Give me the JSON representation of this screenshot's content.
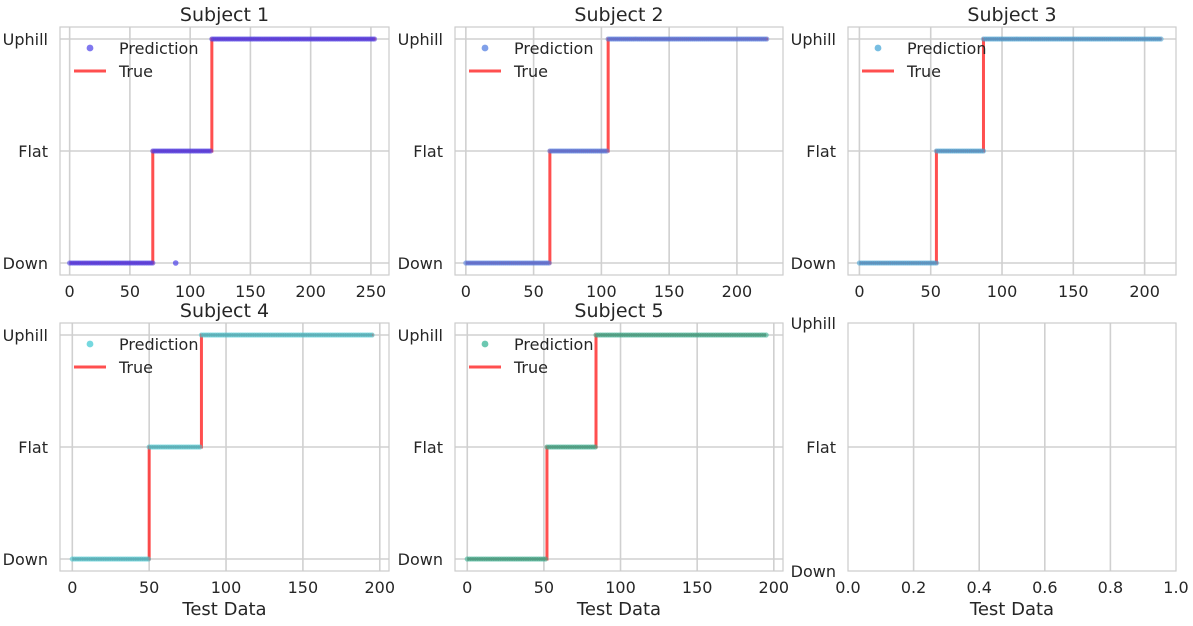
{
  "chart_data": [
    {
      "type": "line",
      "title": "Subject 1",
      "xlabel": "",
      "xlim": [
        -8,
        265
      ],
      "xticks": [
        0,
        50,
        100,
        150,
        200,
        250
      ],
      "categories": [
        "Down",
        "Flat",
        "Uphill"
      ],
      "pred_color": "#4a3fe8",
      "series": [
        {
          "name": "Prediction",
          "kind": "scatter",
          "segments": [
            [
              0,
              69,
              0
            ],
            [
              69,
              118,
              1
            ],
            [
              118,
              254,
              2
            ]
          ],
          "outliers": [
            [
              88,
              0
            ]
          ]
        },
        {
          "name": "True",
          "kind": "step",
          "points": [
            [
              0,
              0
            ],
            [
              69,
              0
            ],
            [
              69,
              1
            ],
            [
              118,
              1
            ],
            [
              118,
              2
            ],
            [
              254,
              2
            ]
          ]
        }
      ],
      "legend": [
        "Prediction",
        "True"
      ],
      "legend_position": "upper left"
    },
    {
      "type": "line",
      "title": "Subject 2",
      "xlabel": "",
      "xlim": [
        -8,
        234
      ],
      "xticks": [
        0,
        50,
        100,
        150,
        200
      ],
      "categories": [
        "Down",
        "Flat",
        "Uphill"
      ],
      "pred_color": "#4a78e0",
      "series": [
        {
          "name": "Prediction",
          "kind": "scatter",
          "segments": [
            [
              0,
              62,
              0
            ],
            [
              62,
              105,
              1
            ],
            [
              105,
              223,
              2
            ]
          ],
          "outliers": []
        },
        {
          "name": "True",
          "kind": "step",
          "points": [
            [
              0,
              0
            ],
            [
              62,
              0
            ],
            [
              62,
              1
            ],
            [
              105,
              1
            ],
            [
              105,
              2
            ],
            [
              223,
              2
            ]
          ]
        }
      ],
      "legend": [
        "Prediction",
        "True"
      ],
      "legend_position": "upper left"
    },
    {
      "type": "line",
      "title": "Subject 3",
      "xlabel": "",
      "xlim": [
        -8,
        222
      ],
      "xticks": [
        0,
        50,
        100,
        150,
        200
      ],
      "categories": [
        "Down",
        "Flat",
        "Uphill"
      ],
      "pred_color": "#3fa2d6",
      "series": [
        {
          "name": "Prediction",
          "kind": "scatter",
          "segments": [
            [
              0,
              54,
              0
            ],
            [
              54,
              87,
              1
            ],
            [
              87,
              212,
              2
            ]
          ],
          "outliers": []
        },
        {
          "name": "True",
          "kind": "step",
          "points": [
            [
              0,
              0
            ],
            [
              54,
              0
            ],
            [
              54,
              1
            ],
            [
              87,
              1
            ],
            [
              87,
              2
            ],
            [
              212,
              2
            ]
          ]
        }
      ],
      "legend": [
        "Prediction",
        "True"
      ],
      "legend_position": "upper left"
    },
    {
      "type": "line",
      "title": "Subject 4",
      "xlabel": "Test Data",
      "xlim": [
        -8,
        206
      ],
      "xticks": [
        0,
        50,
        100,
        150,
        200
      ],
      "categories": [
        "Down",
        "Flat",
        "Uphill"
      ],
      "pred_color": "#3cc8d2",
      "series": [
        {
          "name": "Prediction",
          "kind": "scatter",
          "segments": [
            [
              0,
              50,
              0
            ],
            [
              50,
              84,
              1
            ],
            [
              84,
              196,
              2
            ]
          ],
          "outliers": []
        },
        {
          "name": "True",
          "kind": "step",
          "points": [
            [
              0,
              0
            ],
            [
              50,
              0
            ],
            [
              50,
              1
            ],
            [
              84,
              1
            ],
            [
              84,
              2
            ],
            [
              196,
              2
            ]
          ]
        }
      ],
      "legend": [
        "Prediction",
        "True"
      ],
      "legend_position": "upper left"
    },
    {
      "type": "line",
      "title": "Subject 5",
      "xlabel": "Test Data",
      "xlim": [
        -8,
        206
      ],
      "xticks": [
        0,
        50,
        100,
        150,
        200
      ],
      "categories": [
        "Down",
        "Flat",
        "Uphill"
      ],
      "pred_color": "#2eb090",
      "series": [
        {
          "name": "Prediction",
          "kind": "scatter",
          "segments": [
            [
              0,
              52,
              0
            ],
            [
              52,
              84,
              1
            ],
            [
              84,
              195,
              2
            ]
          ],
          "outliers": []
        },
        {
          "name": "True",
          "kind": "step",
          "points": [
            [
              0,
              0
            ],
            [
              52,
              0
            ],
            [
              52,
              1
            ],
            [
              84,
              1
            ],
            [
              84,
              2
            ],
            [
              195,
              2
            ]
          ]
        }
      ],
      "legend": [
        "Prediction",
        "True"
      ],
      "legend_position": "upper left"
    },
    {
      "type": "line",
      "title": "",
      "xlabel": "Test Data",
      "xlim": [
        0,
        1
      ],
      "xticks": [
        0.0,
        0.2,
        0.4,
        0.6,
        0.8,
        1.0
      ],
      "xtick_labels": [
        "0.0",
        "0.2",
        "0.4",
        "0.6",
        "0.8",
        "1.0"
      ],
      "categories": [
        "Down",
        "Flat",
        "Uphill"
      ],
      "series": [],
      "legend": []
    }
  ],
  "true_color": "#ff3030"
}
